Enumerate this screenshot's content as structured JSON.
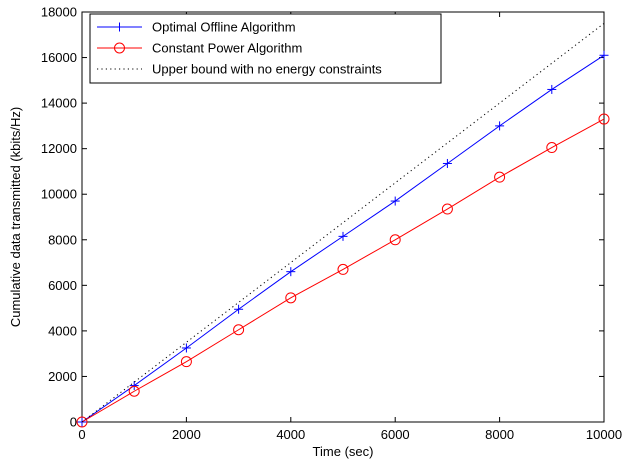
{
  "chart_data": {
    "type": "line",
    "title": "",
    "xlabel": "Time (sec)",
    "ylabel": "Cumulative data transmitted (kbits/Hz)",
    "xlim": [
      0,
      10000
    ],
    "ylim": [
      0,
      18000
    ],
    "xticks": [
      0,
      2000,
      4000,
      6000,
      8000,
      10000
    ],
    "yticks": [
      0,
      2000,
      4000,
      6000,
      8000,
      10000,
      12000,
      14000,
      16000,
      18000
    ],
    "grid": false,
    "legend_position": "top-left",
    "series": [
      {
        "name": "Optimal Offline Algorithm",
        "color": "#0000ff",
        "line": "solid",
        "marker": "plus",
        "x": [
          0,
          1000,
          2000,
          3000,
          4000,
          5000,
          6000,
          7000,
          8000,
          9000,
          10000
        ],
        "y": [
          0,
          1600,
          3250,
          4950,
          6600,
          8150,
          9700,
          11350,
          13000,
          14600,
          16100
        ]
      },
      {
        "name": "Constant Power Algorithm",
        "color": "#ff0000",
        "line": "solid",
        "marker": "circle",
        "x": [
          0,
          1000,
          2000,
          3000,
          4000,
          5000,
          6000,
          7000,
          8000,
          9000,
          10000
        ],
        "y": [
          0,
          1350,
          2650,
          4050,
          5450,
          6700,
          8000,
          9350,
          10750,
          12050,
          13300
        ]
      },
      {
        "name": "Upper bound with no energy constraints",
        "color": "#000000",
        "line": "dotted",
        "marker": "none",
        "x": [
          0,
          10000
        ],
        "y": [
          0,
          17500
        ]
      }
    ]
  }
}
